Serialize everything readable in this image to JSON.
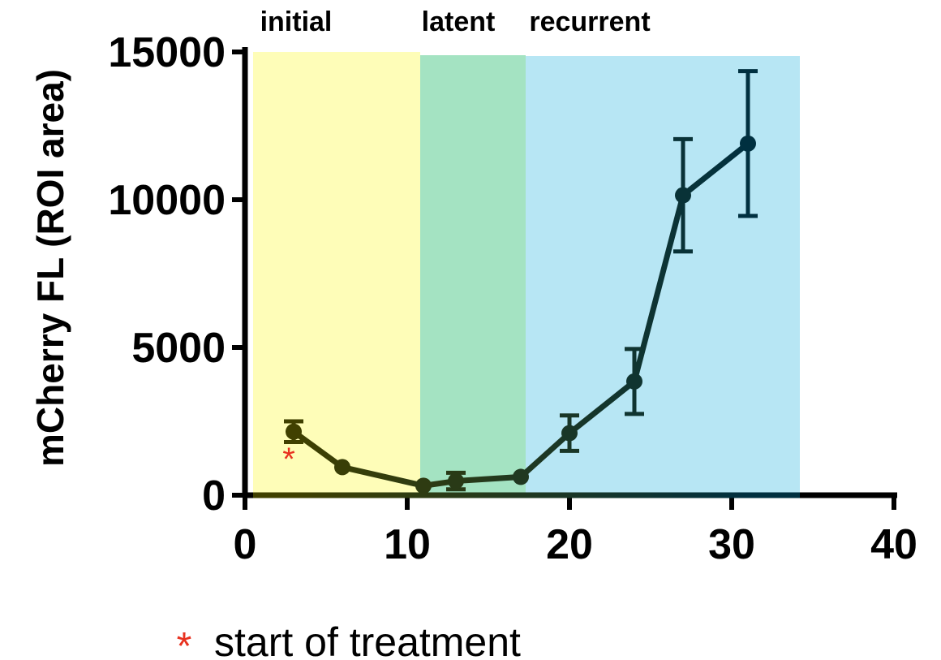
{
  "chart_data": {
    "type": "line",
    "title": "",
    "xlabel": "",
    "ylabel": "mCherry FL (ROI area)",
    "xlim": [
      0,
      40
    ],
    "ylim": [
      0,
      15000
    ],
    "x_ticks": [
      0,
      10,
      20,
      30,
      40
    ],
    "y_ticks": [
      0,
      5000,
      10000,
      15000
    ],
    "x_tick_labels": [
      "0",
      "10",
      "20",
      "30",
      "40"
    ],
    "y_tick_labels": [
      "0",
      "5000",
      "10000",
      "15000"
    ],
    "grid": false,
    "phases": [
      {
        "label": "initial",
        "x_start": 0.5,
        "x_end": 10.8,
        "color": "#fefdb8"
      },
      {
        "label": "latent",
        "x_start": 10.8,
        "x_end": 17.3,
        "color": "#a4e3c2"
      },
      {
        "label": "recurrent",
        "x_start": 17.3,
        "x_end": 34.2,
        "color": "#b7e6f4"
      }
    ],
    "series": [
      {
        "color_start": "#404000",
        "color_end": "#003040",
        "points": [
          {
            "x": 3,
            "y": 2150,
            "err": 350
          },
          {
            "x": 6,
            "y": 950,
            "err": 0
          },
          {
            "x": 11,
            "y": 320,
            "err": 0
          },
          {
            "x": 13,
            "y": 480,
            "err": 280
          },
          {
            "x": 17,
            "y": 620,
            "err": 0
          },
          {
            "x": 20,
            "y": 2100,
            "err": 600
          },
          {
            "x": 24,
            "y": 3850,
            "err": 1100
          },
          {
            "x": 27,
            "y": 10150,
            "err": 1900
          },
          {
            "x": 31,
            "y": 11900,
            "err": 2450
          }
        ]
      }
    ],
    "annotations": [
      {
        "text": "*",
        "x": 2.7,
        "y": 1400,
        "color": "#e8311f"
      }
    ],
    "legend": {
      "symbol": "*",
      "symbol_color": "#e8311f",
      "text": "start of treatment",
      "placement": "bottom"
    }
  }
}
